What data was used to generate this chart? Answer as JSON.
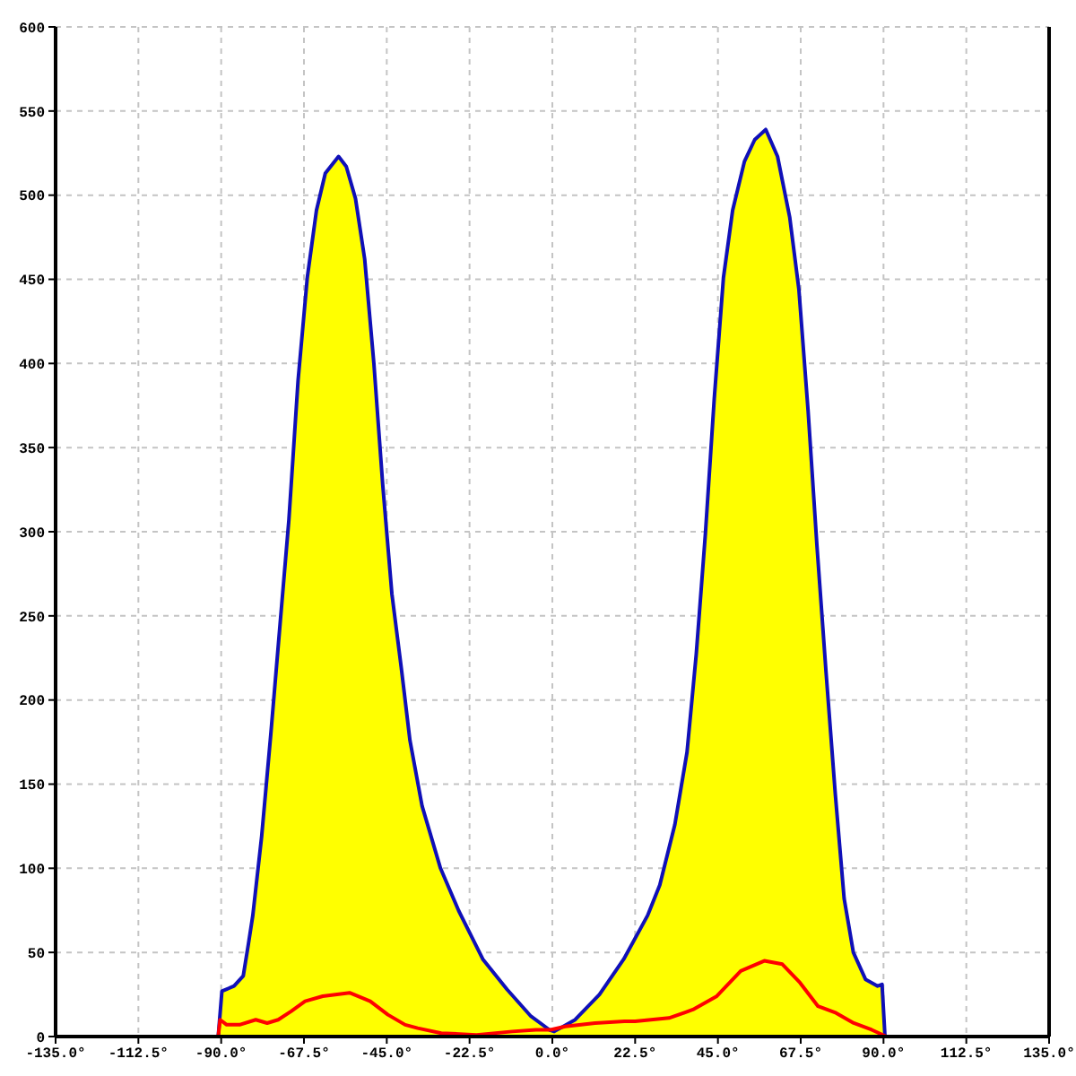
{
  "chart_data": {
    "type": "area",
    "xlim": [
      -135,
      135
    ],
    "xticks": [
      {
        "value": -135,
        "label": "-135.0°"
      },
      {
        "value": -112.5,
        "label": "-112.5°"
      },
      {
        "value": -90,
        "label": "-90.0°"
      },
      {
        "value": -67.5,
        "label": "-67.5°"
      },
      {
        "value": -45,
        "label": "-45.0°"
      },
      {
        "value": -22.5,
        "label": "-22.5°"
      },
      {
        "value": 0,
        "label": "0.0°"
      },
      {
        "value": 22.5,
        "label": "22.5°"
      },
      {
        "value": 45,
        "label": "45.0°"
      },
      {
        "value": 67.5,
        "label": "67.5°"
      },
      {
        "value": 90,
        "label": "90.0°"
      },
      {
        "value": 112.5,
        "label": "112.5°"
      },
      {
        "value": 135,
        "label": "135.0°"
      }
    ],
    "ylim": [
      0,
      600
    ],
    "yticks": [
      0,
      50,
      100,
      150,
      200,
      250,
      300,
      350,
      400,
      450,
      500,
      550,
      600
    ],
    "grid": true,
    "series": [
      {
        "color": "#ffff00",
        "x": [
          -90.8,
          -89.8,
          -86.5,
          -84,
          -82.6,
          -81.4,
          -79,
          -76.5,
          -74,
          -71.6,
          -69.1,
          -66.6,
          -64.1,
          -61.7,
          -58.1,
          -56,
          -53.5,
          -51,
          -48.5,
          -46.1,
          -43.6,
          -41.1,
          -38.7,
          -35.4,
          -30.4,
          -25.5,
          -18.9,
          -12.3,
          -5.8,
          -0.8,
          0.5,
          6.2,
          12.8,
          19.4,
          25.9,
          29.2,
          33.3,
          36.6,
          39.1,
          41.6,
          44,
          46.5,
          49,
          52.2,
          55,
          58,
          61.2,
          64.5,
          67,
          69.5,
          71.9,
          74.4,
          76.9,
          79.3,
          81.8,
          85.1,
          88.4,
          89.6,
          90.4
        ],
        "values": [
          0,
          27,
          30,
          36,
          55,
          72,
          119,
          180,
          245,
          307,
          390,
          451,
          491,
          513,
          523,
          517,
          498,
          462,
          400,
          328,
          263,
          220,
          176,
          137,
          100,
          75,
          46,
          28,
          12,
          4,
          3,
          10,
          25,
          46,
          72,
          90,
          126,
          169,
          227,
          299,
          379,
          451,
          491,
          520,
          533,
          539,
          523,
          487,
          444,
          372,
          292,
          216,
          144,
          82,
          50,
          34,
          30,
          31,
          0
        ]
      },
      {
        "type": "line",
        "color": "#ff0000",
        "x": [
          -135,
          -90.8,
          -90.3,
          -88.5,
          -85,
          -80.6,
          -77.5,
          -74.5,
          -71,
          -67.2,
          -62.4,
          -55.1,
          -49.5,
          -44.7,
          -40,
          -36.6,
          -30.2,
          -20.6,
          -10.9,
          -4.5,
          -0.5,
          3.5,
          11.6,
          19.6,
          22.5,
          31.7,
          38.2,
          44.7,
          51.2,
          57.6,
          62.5,
          67.3,
          72.2,
          77.1,
          81.9,
          86.8,
          90.8,
          135
        ],
        "values": [
          0,
          0,
          10,
          7,
          7,
          10,
          8,
          10,
          15,
          21,
          24,
          26,
          21,
          13,
          7,
          5,
          2,
          1,
          3,
          4,
          4,
          6,
          8,
          9,
          9,
          11,
          16,
          24,
          39,
          45,
          43,
          32,
          18,
          14,
          8,
          4,
          0,
          0
        ]
      }
    ]
  }
}
